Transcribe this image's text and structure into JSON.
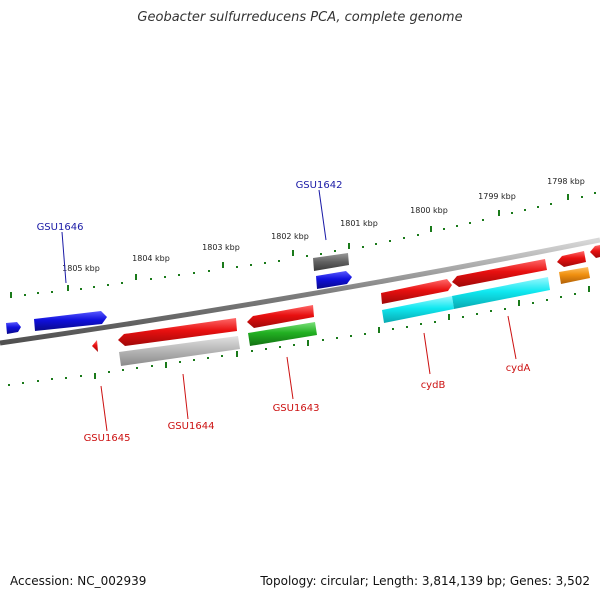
{
  "title": "Geobacter sulfurreducens PCA, complete genome",
  "footer": {
    "accession": "Accession: NC_002939",
    "summary": "Topology: circular; Length: 3,814,139 bp; Genes: 3,502"
  },
  "scale_labels": [
    "1798 kbp",
    "1799 kbp",
    "1800 kbp",
    "1801 kbp",
    "1802 kbp",
    "1803 kbp",
    "1804 kbp",
    "1805 kbp"
  ],
  "genes": {
    "forward": [
      "GSU1646",
      "GSU1642"
    ],
    "reverse": [
      "GSU1645",
      "GSU1644",
      "GSU1643",
      "cydB",
      "cydA"
    ]
  },
  "colors": {
    "backbone": "#808080",
    "scale_ticks": "#1a7a1a",
    "forward_label": "#1a1aa6",
    "reverse_label": "#cc1111",
    "blue": "#1010dd",
    "red": "#e81010",
    "gray": "#b4b4b4",
    "darkgray": "#606060",
    "green": "#22b022",
    "cyan": "#10e8f0",
    "orange": "#f09010"
  }
}
